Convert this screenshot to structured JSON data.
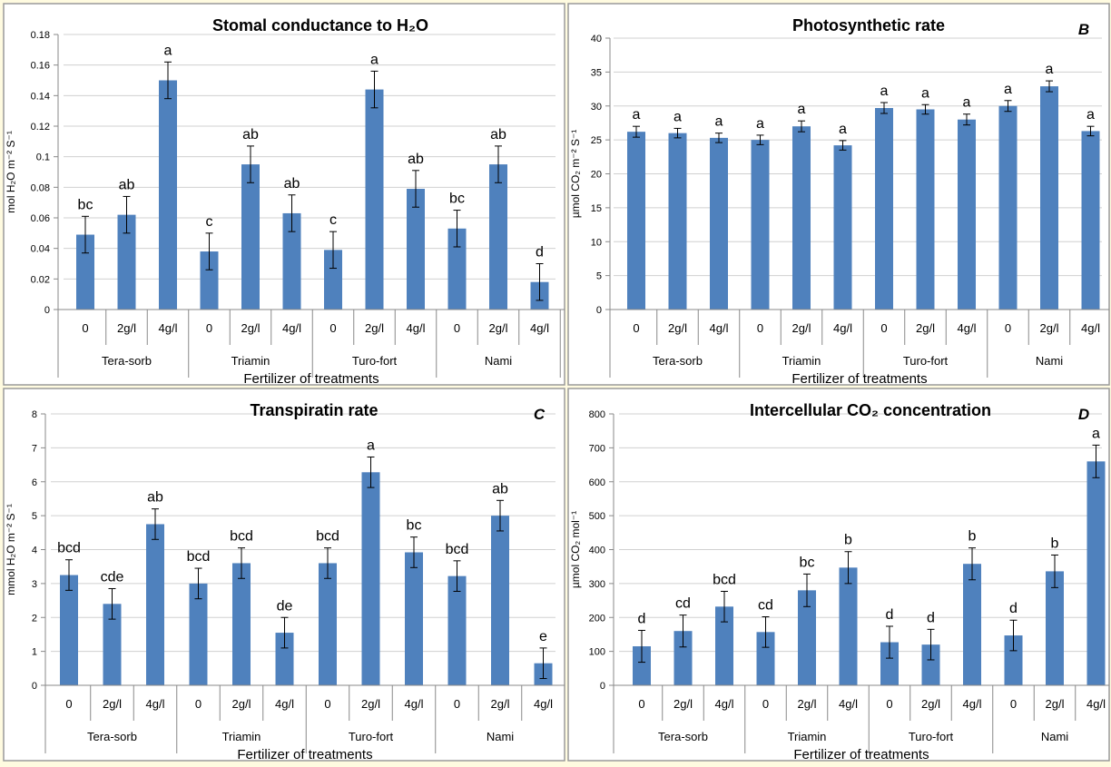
{
  "chart_data": [
    {
      "type": "bar",
      "title": "Stomal conductance  to H₂O",
      "panel_letter": "",
      "ylabel": "mol H₂O m⁻² S⁻¹",
      "xlabel": "Fertilizer of treatments",
      "ylim": [
        0,
        0.18
      ],
      "yticks": [
        "0",
        "0.02",
        "0.04",
        "0.06",
        "0.08",
        "0.1",
        "0.12",
        "0.14",
        "0.16",
        "0.18"
      ],
      "groups": [
        "Tera-sorb",
        "Triamin",
        "Turo-fort",
        "Nami"
      ],
      "categories": [
        "0",
        "2g/l",
        "4g/l",
        "0",
        "2g/l",
        "4g/l",
        "0",
        "2g/l",
        "4g/l",
        "0",
        "2g/l",
        "4g/l"
      ],
      "values": [
        0.049,
        0.062,
        0.15,
        0.038,
        0.095,
        0.063,
        0.039,
        0.144,
        0.079,
        0.053,
        0.095,
        0.018
      ],
      "errors": [
        0.012,
        0.012,
        0.012,
        0.012,
        0.012,
        0.012,
        0.012,
        0.012,
        0.012,
        0.012,
        0.012,
        0.012
      ],
      "letters": [
        "bc",
        "ab",
        "a",
        "c",
        "ab",
        "ab",
        "c",
        "a",
        "ab",
        "bc",
        "ab",
        "d"
      ],
      "color": "#4f81bd",
      "grid": true
    },
    {
      "type": "bar",
      "title": "Photosynthetic rate",
      "panel_letter": "B",
      "ylabel": "µmol CO₂ m⁻² S⁻¹",
      "xlabel": "Fertilizer of treatments",
      "ylim": [
        0,
        40
      ],
      "yticks": [
        "0",
        "5",
        "10",
        "15",
        "20",
        "25",
        "30",
        "35",
        "40"
      ],
      "groups": [
        "Tera-sorb",
        "Triamin",
        "Turo-fort",
        "Nami"
      ],
      "categories": [
        "0",
        "2g/l",
        "4g/l",
        "0",
        "2g/l",
        "4g/l",
        "0",
        "2g/l",
        "4g/l",
        "0",
        "2g/l",
        "4g/l"
      ],
      "values": [
        26.2,
        26.0,
        25.3,
        25.0,
        27.0,
        24.2,
        29.7,
        29.5,
        28.0,
        30.0,
        32.9,
        26.3
      ],
      "errors": [
        0.8,
        0.7,
        0.7,
        0.7,
        0.8,
        0.7,
        0.8,
        0.7,
        0.8,
        0.8,
        0.8,
        0.7
      ],
      "letters": [
        "a",
        "a",
        "a",
        "a",
        "a",
        "a",
        "a",
        "a",
        "a",
        "a",
        "a",
        "a"
      ],
      "color": "#4f81bd",
      "grid": true
    },
    {
      "type": "bar",
      "title": "Transpiratin rate",
      "panel_letter": "C",
      "ylabel": "mmol H₂O m⁻² S⁻¹",
      "xlabel": "Fertilizer of  treatments",
      "ylim": [
        0,
        8
      ],
      "yticks": [
        "0",
        "1",
        "2",
        "3",
        "4",
        "5",
        "6",
        "7",
        "8"
      ],
      "groups": [
        "Tera-sorb",
        "Triamin",
        "Turo-fort",
        "Nami"
      ],
      "categories": [
        "0",
        "2g/l",
        "4g/l",
        "0",
        "2g/l",
        "4g/l",
        "0",
        "2g/l",
        "4g/l",
        "0",
        "2g/l",
        "4g/l"
      ],
      "values": [
        3.25,
        2.4,
        4.75,
        3.0,
        3.6,
        1.55,
        3.6,
        6.28,
        3.92,
        3.22,
        5.0,
        0.65
      ],
      "errors": [
        0.45,
        0.45,
        0.45,
        0.45,
        0.45,
        0.45,
        0.45,
        0.45,
        0.45,
        0.45,
        0.45,
        0.45
      ],
      "letters": [
        "bcd",
        "cde",
        "ab",
        "bcd",
        "bcd",
        "de",
        "bcd",
        "a",
        "bc",
        "bcd",
        "ab",
        "e"
      ],
      "color": "#4f81bd",
      "grid": true
    },
    {
      "type": "bar",
      "title": "Intercellular CO₂ concentration",
      "panel_letter": "D",
      "ylabel": "µmol CO₂ mol⁻¹",
      "xlabel": "Fertilizer of treatments",
      "ylim": [
        0,
        800
      ],
      "yticks": [
        "0",
        "100",
        "200",
        "300",
        "400",
        "500",
        "600",
        "700",
        "800"
      ],
      "groups": [
        "Tera-sorb",
        "Triamin",
        "Turo-fort",
        "Nami"
      ],
      "categories": [
        "0",
        "2g/l",
        "4g/l",
        "0",
        "2g/l",
        "4g/l",
        "0",
        "2g/l",
        "4g/l",
        "0",
        "2g/l",
        "4g/l"
      ],
      "values": [
        115,
        160,
        232,
        157,
        280,
        347,
        127,
        120,
        358,
        147,
        336,
        660
      ],
      "errors": [
        47,
        47,
        45,
        45,
        48,
        47,
        47,
        45,
        47,
        45,
        48,
        48
      ],
      "letters": [
        "d",
        "cd",
        "bcd",
        "cd",
        "bc",
        "b",
        "d",
        "d",
        "b",
        "d",
        "b",
        "a"
      ],
      "color": "#4f81bd",
      "grid": true
    }
  ]
}
